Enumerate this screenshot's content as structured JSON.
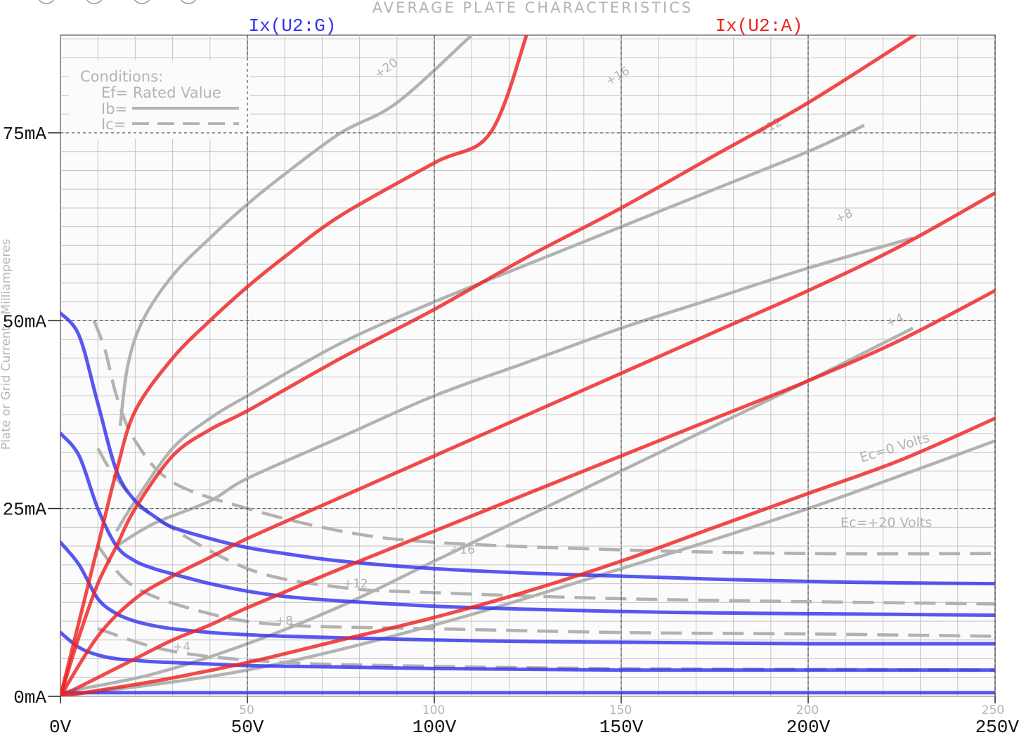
{
  "window": {
    "control_buttons": [
      "circle-button",
      "circle-button",
      "circle-button",
      "circle-button"
    ]
  },
  "background_sheet": {
    "title": "AVERAGE PLATE CHARACTERISTICS",
    "conditions_title": "Conditions:",
    "ef_label": "Ef= Rated Value",
    "ib_label": "Ib=",
    "ic_label": "Ic=",
    "yaxis_label": "Plate or Grid Current - Milliamperes",
    "xtick_labels": [
      "50",
      "100",
      "150",
      "200",
      "250"
    ],
    "plate_curve_labels": [
      "+20",
      "+16",
      "+12",
      "+8",
      "+4",
      "Ec=0 Volts"
    ],
    "grid_curve_labels": [
      "Ec=+20 Volts",
      "+16",
      "+12",
      "+8",
      "+4"
    ]
  },
  "chart_data": {
    "type": "line",
    "title": "",
    "xlabel": "",
    "ylabel": "",
    "xlim": [
      0,
      250
    ],
    "ylim": [
      0,
      88
    ],
    "xticks": [
      0,
      50,
      100,
      150,
      200,
      250
    ],
    "xtick_labels": [
      "0V",
      "50V",
      "100V",
      "150V",
      "200V",
      "250V"
    ],
    "yticks": [
      0,
      25,
      50,
      75
    ],
    "ytick_labels": [
      "0mA",
      "25mA",
      "50mA",
      "75mA"
    ],
    "grid": true,
    "legend_position": "top",
    "series": [
      {
        "name": "Ix(U2:G)",
        "color": "#3333ee",
        "curves": [
          {
            "x": [
              0,
              5,
              10,
              15,
              20,
              25,
              30,
              40,
              50,
              60,
              75,
              100,
              125,
              150,
              175,
              200,
              225,
              250
            ],
            "y": [
              51,
              48,
              39,
              30,
              26,
              24,
              22.5,
              21,
              19.8,
              19,
              18,
              17,
              16.4,
              16,
              15.6,
              15.3,
              15.1,
              15
            ]
          },
          {
            "x": [
              0,
              5,
              10,
              15,
              20,
              25,
              30,
              40,
              50,
              60,
              75,
              100,
              125,
              150,
              175,
              200,
              225,
              250
            ],
            "y": [
              35,
              32,
              25,
              20,
              18,
              17,
              16.3,
              15,
              14,
              13.3,
              12.7,
              12,
              11.6,
              11.3,
              11.1,
              11,
              10.9,
              10.8
            ]
          },
          {
            "x": [
              0,
              5,
              10,
              15,
              20,
              25,
              30,
              40,
              50,
              60,
              75,
              100,
              125,
              150,
              175,
              200,
              225,
              250
            ],
            "y": [
              20.5,
              17.5,
              13,
              11,
              10,
              9.4,
              9,
              8.5,
              8.2,
              8,
              7.8,
              7.5,
              7.3,
              7.2,
              7.1,
              7,
              7,
              7
            ]
          },
          {
            "x": [
              0,
              5,
              10,
              15,
              20,
              25,
              30,
              40,
              50,
              60,
              75,
              100,
              125,
              150,
              175,
              200,
              225,
              250
            ],
            "y": [
              8.5,
              6.5,
              5.5,
              5,
              4.8,
              4.6,
              4.5,
              4.3,
              4.1,
              4,
              3.9,
              3.7,
              3.6,
              3.5,
              3.5,
              3.5,
              3.5,
              3.5
            ]
          },
          {
            "x": [
              0,
              50,
              100,
              150,
              200,
              250
            ],
            "y": [
              0.5,
              0.5,
              0.5,
              0.5,
              0.5,
              0.5
            ]
          }
        ]
      },
      {
        "name": "Ix(U2:A)",
        "color": "#ee2222",
        "curves": [
          {
            "x": [
              0,
              5,
              10,
              15,
              20,
              30,
              40,
              50,
              60,
              75,
              100,
              115,
              125
            ],
            "y": [
              0,
              10,
              20,
              30,
              38,
              45,
              50,
              54.5,
              58.5,
              64,
              71,
              75,
              88.5
            ]
          },
          {
            "x": [
              0,
              5,
              10,
              15,
              20,
              30,
              40,
              50,
              75,
              100,
              125,
              150,
              175,
              200,
              230
            ],
            "y": [
              0,
              8,
              15,
              20,
              25,
              32,
              35.5,
              38,
              45,
              51.5,
              58.5,
              65,
              72,
              79,
              88.5
            ]
          },
          {
            "x": [
              0,
              10,
              20,
              30,
              40,
              50,
              75,
              100,
              125,
              150,
              175,
              200,
              225,
              250
            ],
            "y": [
              0,
              8,
              13,
              16,
              18.5,
              21,
              26.5,
              32,
              37.5,
              43,
              48.5,
              54,
              60,
              67
            ]
          },
          {
            "x": [
              0,
              10,
              20,
              30,
              40,
              50,
              75,
              100,
              125,
              150,
              175,
              200,
              225,
              250
            ],
            "y": [
              0,
              2.5,
              5,
              7.5,
              9.5,
              11.8,
              17,
              22,
              27,
              32,
              37,
              42,
              47.5,
              54
            ]
          },
          {
            "x": [
              0,
              25,
              50,
              75,
              100,
              125,
              150,
              175,
              200,
              225,
              250
            ],
            "y": [
              0,
              2,
              4.5,
              7.5,
              10.5,
              14,
              18,
              22.5,
              27,
              31.5,
              37
            ]
          }
        ]
      }
    ]
  }
}
